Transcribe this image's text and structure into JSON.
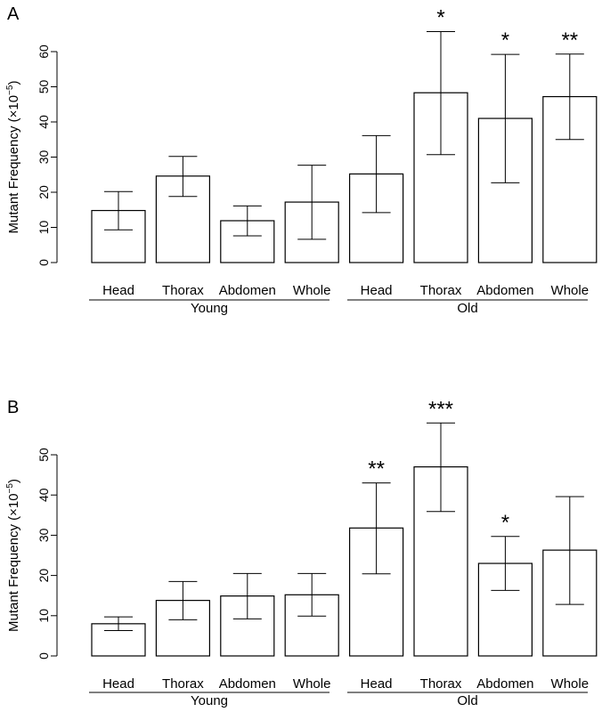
{
  "chart_data": [
    {
      "type": "bar",
      "panel_label": "A",
      "ylabel": "Mutant Frequency (×10",
      "ylabel_exp": "−5",
      "ylabel_close": ")",
      "ylim": [
        0,
        60
      ],
      "yticks": [
        0,
        10,
        20,
        30,
        40,
        50,
        60
      ],
      "categories": [
        "Head",
        "Thorax",
        "Abdomen",
        "Whole",
        "Head",
        "Thorax",
        "Abdomen",
        "Whole"
      ],
      "groups": [
        {
          "label": "Young",
          "indices": [
            0,
            1,
            2,
            3
          ]
        },
        {
          "label": "Old",
          "indices": [
            4,
            5,
            6,
            7
          ]
        }
      ],
      "values": [
        14.8,
        24.6,
        11.9,
        17.2,
        25.2,
        48.3,
        41.0,
        47.2
      ],
      "err_low": [
        9.3,
        18.8,
        7.6,
        6.6,
        14.2,
        30.7,
        22.7,
        35.0
      ],
      "err_high": [
        20.2,
        30.2,
        16.1,
        27.7,
        36.1,
        65.7,
        59.2,
        59.3
      ],
      "significance": [
        "",
        "",
        "",
        "",
        "",
        "*",
        "*",
        "**"
      ]
    },
    {
      "type": "bar",
      "panel_label": "B",
      "ylabel": "Mutant Frequency (×10",
      "ylabel_exp": "−5",
      "ylabel_close": ")",
      "ylim": [
        0,
        50
      ],
      "yticks": [
        0,
        10,
        20,
        30,
        40,
        50
      ],
      "categories": [
        "Head",
        "Thorax",
        "Abdomen",
        "Whole",
        "Head",
        "Thorax",
        "Abdomen",
        "Whole"
      ],
      "groups": [
        {
          "label": "Young",
          "indices": [
            0,
            1,
            2,
            3
          ]
        },
        {
          "label": "Old",
          "indices": [
            4,
            5,
            6,
            7
          ]
        }
      ],
      "values": [
        8.0,
        13.8,
        14.9,
        15.2,
        31.8,
        47.0,
        23.0,
        26.3
      ],
      "err_low": [
        6.3,
        9.0,
        9.2,
        9.9,
        20.4,
        35.9,
        16.3,
        12.8
      ],
      "err_high": [
        9.7,
        18.5,
        20.5,
        20.5,
        43.0,
        57.9,
        29.7,
        39.6
      ],
      "significance": [
        "",
        "",
        "",
        "",
        "**",
        "***",
        "*",
        ""
      ]
    }
  ]
}
